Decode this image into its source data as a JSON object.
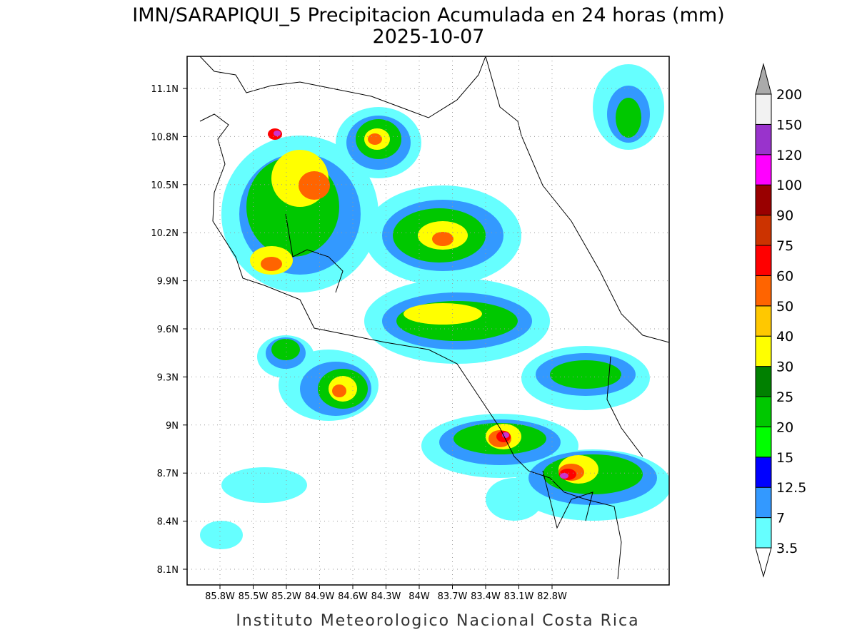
{
  "title": "IMN/SARAPIQUI_5 Precipitacion Acumulada en 24 horas (mm)",
  "date": "2025-10-07",
  "map": {
    "lat_labels": [
      "11.1N",
      "10.8N",
      "10.5N",
      "10.2N",
      "9.9N",
      "9.6N",
      "9.3N",
      "9N",
      "8.7N",
      "8.4N",
      "8.1N"
    ],
    "lon_labels": [
      "85.8W",
      "85.5W",
      "85.2W",
      "84.9W",
      "84.6W",
      "84.3W",
      "84W",
      "83.7W",
      "83.4W",
      "83.1W",
      "82.8W"
    ]
  },
  "colorbar": {
    "levels": [
      3.5,
      7,
      12.5,
      15,
      20,
      25,
      30,
      40,
      50,
      60,
      75,
      90,
      100,
      120,
      150,
      200
    ],
    "colors": [
      "#66ffff",
      "#3399ff",
      "#0000ff",
      "#00ff00",
      "#00c800",
      "#008000",
      "#ffff00",
      "#ffc800",
      "#ff6400",
      "#ff0000",
      "#cc3300",
      "#990000",
      "#ff00ff",
      "#9933cc",
      "#f2f2f2"
    ],
    "under_color": "#ffffff",
    "over_color": "#aaaaaa"
  },
  "footer": "Instituto Meteorologico Nacional Costa Rica"
}
